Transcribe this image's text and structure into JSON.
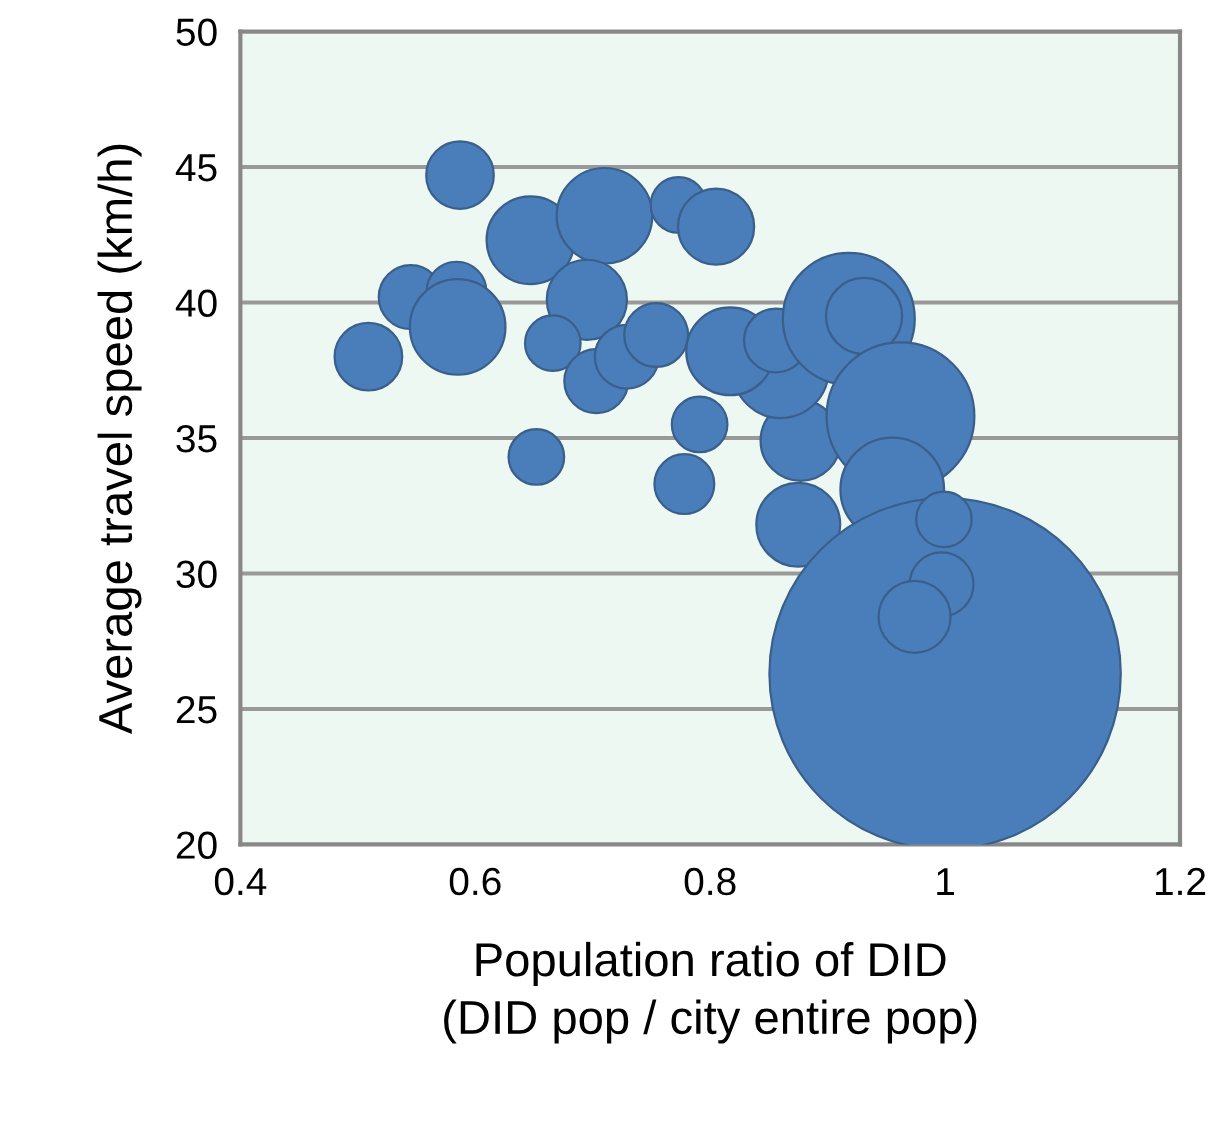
{
  "chart_data": {
    "type": "bubble",
    "xlabel": "Population ratio of DID\n(DID pop / city entire pop)",
    "ylabel": "Average travel speed (km/h)",
    "xlim": [
      0.4,
      1.2
    ],
    "xticks": [
      0.4,
      0.6,
      0.8,
      1,
      1.2
    ],
    "ylim": [
      20,
      50
    ],
    "yticks": [
      20,
      25,
      30,
      35,
      40,
      45,
      50
    ],
    "grid": "y",
    "series": [
      {
        "color": "#4a7ebb",
        "x": [
          0.877,
          0.86,
          0.587,
          0.509,
          0.545,
          0.584,
          0.585,
          0.647,
          0.71,
          0.695,
          0.666,
          0.703,
          0.729,
          0.754,
          0.773,
          0.805,
          0.652,
          0.791,
          0.778,
          0.817,
          0.856,
          0.918,
          0.931,
          0.962,
          0.955,
          0.875,
          1.0,
          0.997,
          0.974,
          0.999
        ],
        "values": [
          34.9,
          37.5,
          44.7,
          38.0,
          40.2,
          40.4,
          39.1,
          42.3,
          43.2,
          40.1,
          38.5,
          37.1,
          38.0,
          38.8,
          43.6,
          42.8,
          34.3,
          35.5,
          33.3,
          38.2,
          38.6,
          39.4,
          39.5,
          35.8,
          33.1,
          31.8,
          26.3,
          29.6,
          28.4,
          32.0
        ],
        "sizes": [
          0.052,
          0.074,
          0.037,
          0.037,
          0.033,
          0.029,
          0.074,
          0.0625,
          0.074,
          0.052,
          0.025,
          0.033,
          0.033,
          0.033,
          0.025,
          0.047,
          0.025,
          0.025,
          0.029,
          0.0625,
          0.033,
          0.141,
          0.047,
          0.177,
          0.087,
          0.057,
          1,
          0.033,
          0.042,
          0.025
        ]
      }
    ]
  }
}
